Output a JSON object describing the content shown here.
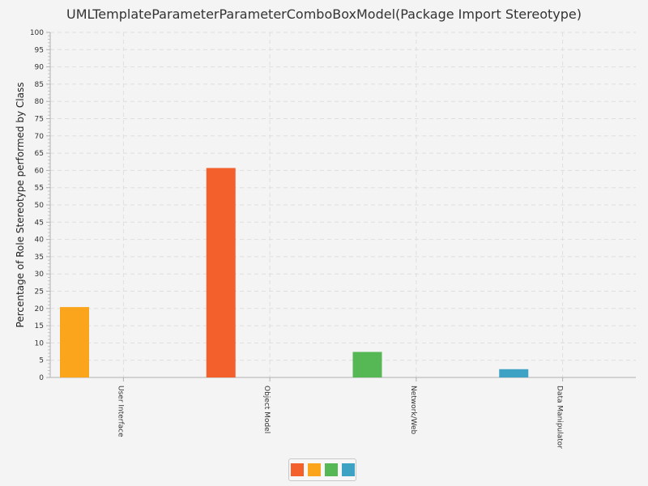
{
  "chart_data": {
    "type": "bar",
    "title": "UMLTemplateParameterParameterComboBoxModel(Package Import Stereotype)",
    "ylabel": "Percentage of Role Stereotype performed by Class",
    "xlabel": "",
    "ylim": [
      0,
      100
    ],
    "yticks": [
      0,
      5,
      10,
      15,
      20,
      25,
      30,
      35,
      40,
      45,
      50,
      55,
      60,
      65,
      70,
      75,
      80,
      85,
      90,
      95,
      100
    ],
    "grid": true,
    "legend_position": "bottom",
    "categories": [
      "User Interface",
      "Object Model",
      "Network/Web",
      "Data Manipulator"
    ],
    "series": [
      {
        "color": "#f4602c",
        "values": [
          0,
          60.7,
          0,
          0
        ]
      },
      {
        "color": "#faa51b",
        "values": [
          20.4,
          0,
          0,
          0
        ]
      },
      {
        "color": "#56b755",
        "values": [
          0,
          0,
          7.4,
          0
        ]
      },
      {
        "color": "#3ea2c5",
        "values": [
          0,
          0,
          0,
          2.4
        ]
      }
    ]
  }
}
